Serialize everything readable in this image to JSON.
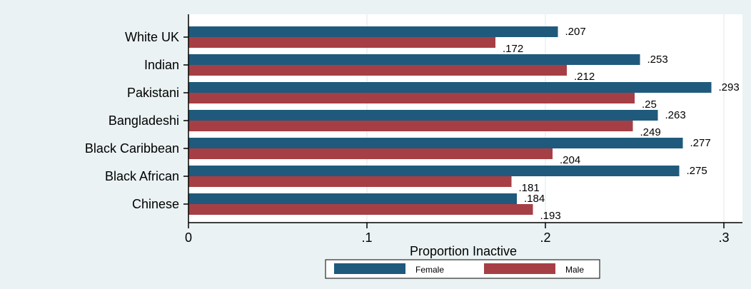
{
  "chart_data": {
    "type": "bar",
    "orientation": "horizontal",
    "categories": [
      "White UK",
      "Indian",
      "Pakistani",
      "Bangladeshi",
      "Black Caribbean",
      "Black African",
      "Chinese"
    ],
    "series": [
      {
        "name": "Female",
        "color": "#1f5a7c",
        "values": [
          0.207,
          0.253,
          0.293,
          0.263,
          0.277,
          0.275,
          0.184
        ],
        "labels": [
          ".207",
          ".253",
          ".293",
          ".263",
          ".277",
          ".275",
          ".184"
        ]
      },
      {
        "name": "Male",
        "color": "#a63f45",
        "values": [
          0.172,
          0.212,
          0.25,
          0.249,
          0.204,
          0.181,
          0.193
        ],
        "labels": [
          ".172",
          ".212",
          ".25",
          ".249",
          ".204",
          ".181",
          ".193"
        ]
      }
    ],
    "xlabel": "Proportion Inactive",
    "ylabel": "",
    "xlim": [
      0,
      0.31
    ],
    "xticks": [
      0,
      0.1,
      0.2,
      0.3
    ],
    "xtick_labels": [
      "0",
      ".1",
      ".2",
      ".3"
    ],
    "grid": true,
    "legend_position": "bottom"
  },
  "colors": {
    "outer_background": "#eaf2f3",
    "plot_background": "#ffffff",
    "grid": "#e8eff0",
    "axis": "#000000"
  }
}
